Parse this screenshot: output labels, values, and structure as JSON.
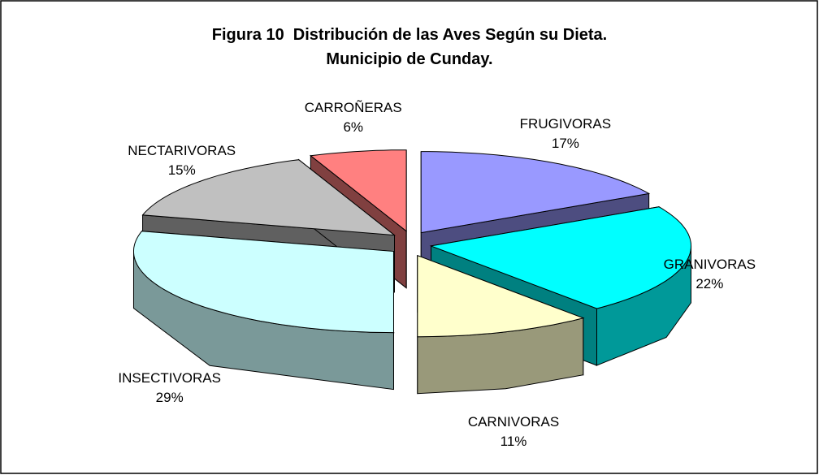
{
  "chart_data": {
    "type": "pie3d",
    "title": "Figura 10  Distribución de las Aves Según su Dieta. Municipio de Cunday.",
    "categories": [
      "FRUGIVORAS",
      "GRANIVORAS",
      "CARNIVORAS",
      "INSECTIVORAS",
      "NECTARIVORAS",
      "CARROÑERAS"
    ],
    "values": [
      17,
      22,
      11,
      29,
      15,
      6
    ],
    "value_labels": [
      "17%",
      "22%",
      "11%",
      "29%",
      "15%",
      "6%"
    ],
    "colors": [
      "#9999ff",
      "#00ffff",
      "#ffffcc",
      "#ccffff",
      "#c0c0c0",
      "#ff8080"
    ]
  }
}
